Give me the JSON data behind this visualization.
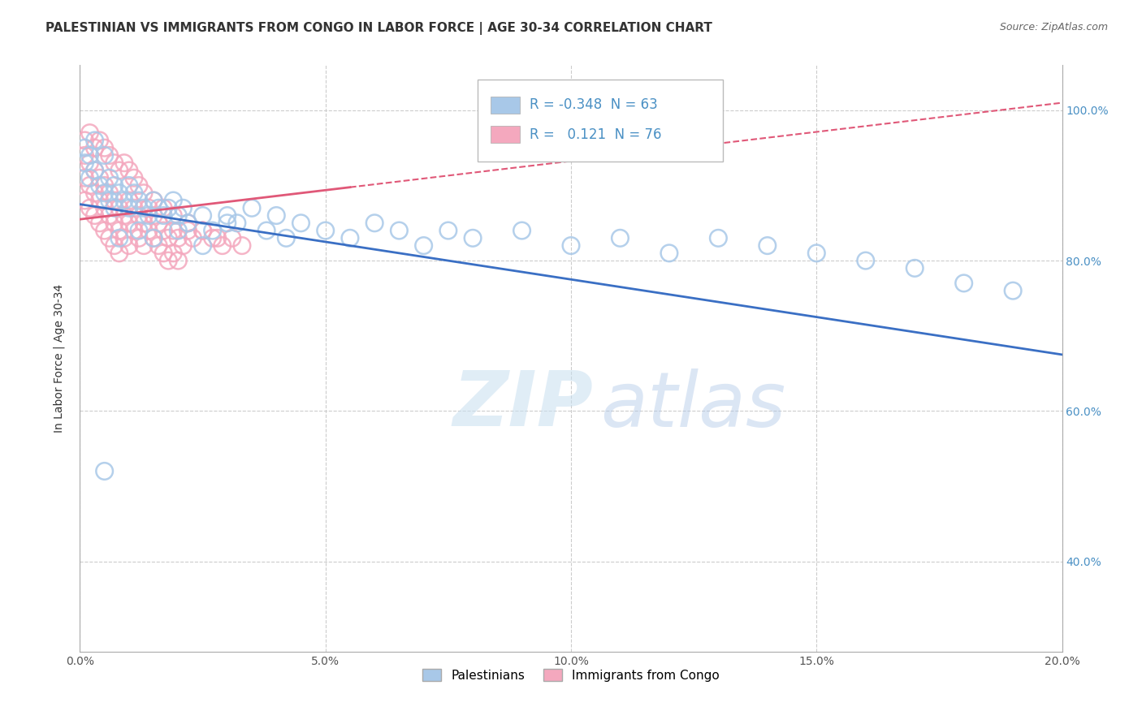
{
  "title": "PALESTINIAN VS IMMIGRANTS FROM CONGO IN LABOR FORCE | AGE 30-34 CORRELATION CHART",
  "source": "Source: ZipAtlas.com",
  "ylabel": "In Labor Force | Age 30-34",
  "xlim": [
    0.0,
    0.2
  ],
  "ylim": [
    0.28,
    1.06
  ],
  "xticks": [
    0.0,
    0.05,
    0.1,
    0.15,
    0.2
  ],
  "xtick_labels": [
    "0.0%",
    "5.0%",
    "10.0%",
    "15.0%",
    "20.0%"
  ],
  "yticks": [
    0.4,
    0.6,
    0.8,
    1.0
  ],
  "ytick_labels": [
    "40.0%",
    "60.0%",
    "80.0%",
    "100.0%"
  ],
  "blue_R": -0.348,
  "blue_N": 63,
  "pink_R": 0.121,
  "pink_N": 76,
  "blue_color": "#a8c8e8",
  "pink_color": "#f4a8be",
  "blue_line_color": "#3a6fc4",
  "pink_line_color": "#e05878",
  "legend_label_blue": "Palestinians",
  "legend_label_pink": "Immigrants from Congo",
  "blue_scatter_x": [
    0.001,
    0.001,
    0.002,
    0.002,
    0.003,
    0.003,
    0.004,
    0.005,
    0.005,
    0.006,
    0.006,
    0.007,
    0.007,
    0.008,
    0.009,
    0.01,
    0.01,
    0.011,
    0.012,
    0.013,
    0.014,
    0.015,
    0.016,
    0.017,
    0.018,
    0.019,
    0.02,
    0.021,
    0.022,
    0.025,
    0.027,
    0.03,
    0.032,
    0.035,
    0.038,
    0.04,
    0.042,
    0.045,
    0.05,
    0.055,
    0.06,
    0.065,
    0.07,
    0.075,
    0.08,
    0.09,
    0.1,
    0.11,
    0.12,
    0.13,
    0.14,
    0.15,
    0.16,
    0.17,
    0.18,
    0.19,
    0.005,
    0.008,
    0.012,
    0.015,
    0.02,
    0.025,
    0.03
  ],
  "blue_scatter_y": [
    0.93,
    0.95,
    0.91,
    0.94,
    0.92,
    0.96,
    0.9,
    0.89,
    0.94,
    0.88,
    0.91,
    0.9,
    0.87,
    0.89,
    0.88,
    0.87,
    0.9,
    0.89,
    0.88,
    0.87,
    0.86,
    0.88,
    0.87,
    0.86,
    0.87,
    0.88,
    0.86,
    0.87,
    0.85,
    0.86,
    0.84,
    0.86,
    0.85,
    0.87,
    0.84,
    0.86,
    0.83,
    0.85,
    0.84,
    0.83,
    0.85,
    0.84,
    0.82,
    0.84,
    0.83,
    0.84,
    0.82,
    0.83,
    0.81,
    0.83,
    0.82,
    0.81,
    0.8,
    0.79,
    0.77,
    0.76,
    0.52,
    0.83,
    0.84,
    0.83,
    0.84,
    0.82,
    0.85
  ],
  "pink_scatter_x": [
    0.001,
    0.001,
    0.001,
    0.002,
    0.002,
    0.002,
    0.003,
    0.003,
    0.003,
    0.004,
    0.004,
    0.004,
    0.005,
    0.005,
    0.005,
    0.006,
    0.006,
    0.006,
    0.007,
    0.007,
    0.007,
    0.008,
    0.008,
    0.008,
    0.009,
    0.009,
    0.01,
    0.01,
    0.01,
    0.011,
    0.011,
    0.012,
    0.012,
    0.013,
    0.013,
    0.014,
    0.014,
    0.015,
    0.015,
    0.016,
    0.016,
    0.017,
    0.017,
    0.018,
    0.018,
    0.019,
    0.019,
    0.02,
    0.02,
    0.021,
    0.022,
    0.023,
    0.025,
    0.027,
    0.029,
    0.031,
    0.033,
    0.001,
    0.002,
    0.003,
    0.004,
    0.005,
    0.006,
    0.007,
    0.008,
    0.009,
    0.01,
    0.011,
    0.012,
    0.013,
    0.015,
    0.017,
    0.019,
    0.022,
    0.025,
    0.028
  ],
  "pink_scatter_y": [
    0.91,
    0.88,
    0.94,
    0.9,
    0.87,
    0.93,
    0.89,
    0.92,
    0.86,
    0.91,
    0.88,
    0.85,
    0.9,
    0.87,
    0.84,
    0.89,
    0.86,
    0.83,
    0.88,
    0.85,
    0.82,
    0.87,
    0.84,
    0.81,
    0.86,
    0.83,
    0.88,
    0.85,
    0.82,
    0.87,
    0.84,
    0.86,
    0.83,
    0.85,
    0.82,
    0.87,
    0.84,
    0.86,
    0.83,
    0.85,
    0.82,
    0.84,
    0.81,
    0.83,
    0.8,
    0.84,
    0.81,
    0.83,
    0.8,
    0.82,
    0.84,
    0.83,
    0.84,
    0.83,
    0.82,
    0.83,
    0.82,
    0.96,
    0.97,
    0.95,
    0.96,
    0.95,
    0.94,
    0.93,
    0.92,
    0.93,
    0.92,
    0.91,
    0.9,
    0.89,
    0.88,
    0.87,
    0.86,
    0.85,
    0.84,
    0.83
  ],
  "watermark_zip": "ZIP",
  "watermark_atlas": "atlas",
  "background_color": "#ffffff",
  "grid_color": "#cccccc",
  "title_fontsize": 11,
  "axis_label_fontsize": 10,
  "tick_fontsize": 10,
  "right_tick_color": "#4a90c4"
}
